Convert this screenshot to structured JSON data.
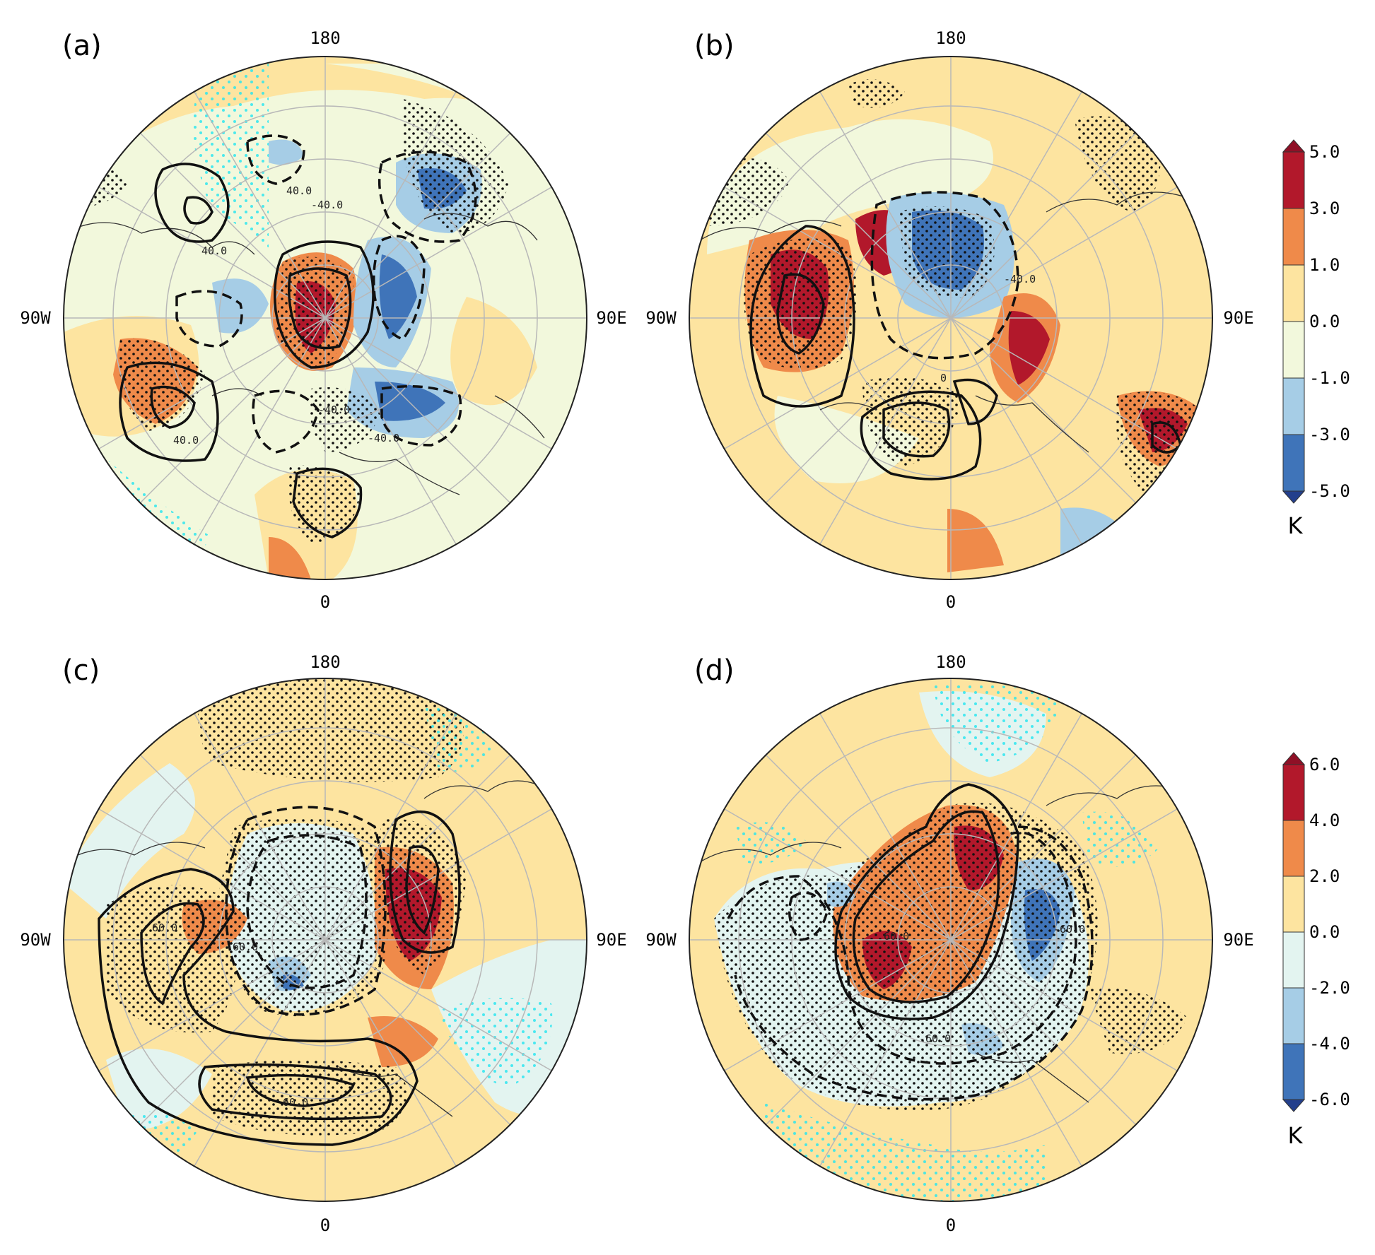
{
  "panels": [
    {
      "label": "(a)",
      "longitude_labels": {
        "top": "180",
        "bottom": "0",
        "left": "90W",
        "right": "90E"
      },
      "contour_labels": [
        "40.0",
        "-40.0",
        "40.0",
        "-40.0",
        "-40.0",
        "40.0"
      ]
    },
    {
      "label": "(b)",
      "longitude_labels": {
        "top": "180",
        "bottom": "0",
        "left": "90W",
        "right": "90E"
      },
      "contour_labels": [
        "-40.0",
        "0"
      ]
    },
    {
      "label": "(c)",
      "longitude_labels": {
        "top": "180",
        "bottom": "0",
        "left": "90W",
        "right": "90E"
      },
      "contour_labels": [
        "60.0",
        "-60.0",
        "60.0"
      ]
    },
    {
      "label": "(d)",
      "longitude_labels": {
        "top": "180",
        "bottom": "0",
        "left": "90W",
        "right": "90E"
      },
      "contour_labels": [
        "-60.0",
        "60.0",
        "-60.0"
      ]
    }
  ],
  "colorbars": [
    {
      "unit": "K",
      "ticks": [
        "5.0",
        "3.0",
        "1.0",
        "0.0",
        "-1.0",
        "-3.0",
        "-5.0"
      ],
      "colors": [
        "#b2182b",
        "#ef8a4a",
        "#fde4a0",
        "#f2f8dc",
        "#a6cde6",
        "#3f74b9"
      ],
      "extend_max_color": "#8f1026",
      "extend_min_color": "#233f8c"
    },
    {
      "unit": "K",
      "ticks": [
        "6.0",
        "4.0",
        "2.0",
        "0.0",
        "-2.0",
        "-4.0",
        "-6.0"
      ],
      "colors": [
        "#b2182b",
        "#ef8a4a",
        "#fde4a0",
        "#e3f4f0",
        "#a6cde6",
        "#3f74b9"
      ],
      "extend_max_color": "#8f1026",
      "extend_min_color": "#233f8c"
    }
  ],
  "colors": {
    "significance_dots": "#111111",
    "secondary_dots": "#22e5f0",
    "grid": "#b8b8b8"
  }
}
